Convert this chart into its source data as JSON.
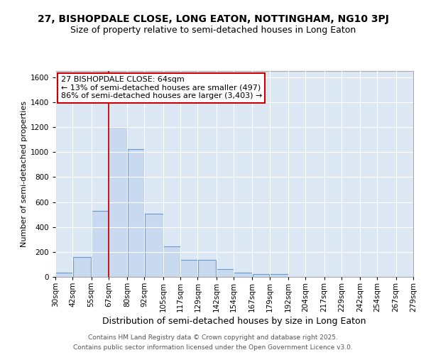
{
  "title1": "27, BISHOPDALE CLOSE, LONG EATON, NOTTINGHAM, NG10 3PJ",
  "title2": "Size of property relative to semi-detached houses in Long Eaton",
  "xlabel": "Distribution of semi-detached houses by size in Long Eaton",
  "ylabel": "Number of semi-detached properties",
  "annotation_title": "27 BISHOPDALE CLOSE: 64sqm",
  "annotation_line1": "← 13% of semi-detached houses are smaller (497)",
  "annotation_line2": "86% of semi-detached houses are larger (3,403) →",
  "footer1": "Contains HM Land Registry data © Crown copyright and database right 2025.",
  "footer2": "Contains public sector information licensed under the Open Government Licence v3.0.",
  "property_size": 64,
  "bar_left_edges": [
    30,
    42,
    55,
    67,
    80,
    92,
    105,
    117,
    129,
    142,
    154,
    167,
    179,
    192,
    204,
    217,
    229,
    242,
    254,
    267
  ],
  "bar_widths": [
    12,
    13,
    12,
    13,
    12,
    13,
    12,
    12,
    13,
    12,
    13,
    12,
    13,
    12,
    13,
    12,
    13,
    12,
    13,
    12
  ],
  "bar_heights": [
    35,
    160,
    530,
    1200,
    1025,
    505,
    245,
    135,
    135,
    65,
    35,
    25,
    20,
    0,
    0,
    0,
    0,
    0,
    0,
    0
  ],
  "bar_color": "#c8d9f0",
  "bar_edge_color": "#6699cc",
  "red_line_x": 67,
  "annotation_box_color": "#ffffff",
  "annotation_box_edge": "#cc0000",
  "ylim": [
    0,
    1650
  ],
  "yticks": [
    0,
    200,
    400,
    600,
    800,
    1000,
    1200,
    1400,
    1600
  ],
  "xlim_left": 30,
  "xlim_right": 279,
  "tick_labels": [
    "30sqm",
    "42sqm",
    "55sqm",
    "67sqm",
    "80sqm",
    "92sqm",
    "105sqm",
    "117sqm",
    "129sqm",
    "142sqm",
    "154sqm",
    "167sqm",
    "179sqm",
    "192sqm",
    "204sqm",
    "217sqm",
    "229sqm",
    "242sqm",
    "254sqm",
    "267sqm",
    "279sqm"
  ],
  "tick_positions": [
    30,
    42,
    55,
    67,
    80,
    92,
    105,
    117,
    129,
    142,
    154,
    167,
    179,
    192,
    204,
    217,
    229,
    242,
    254,
    267,
    279
  ],
  "bg_color": "#ffffff",
  "plot_bg_color": "#dde8f5",
  "grid_color": "#ffffff",
  "title1_fontsize": 10,
  "title2_fontsize": 9,
  "xlabel_fontsize": 9,
  "ylabel_fontsize": 8,
  "tick_fontsize": 7.5,
  "annotation_fontsize": 8,
  "footer_fontsize": 6.5
}
